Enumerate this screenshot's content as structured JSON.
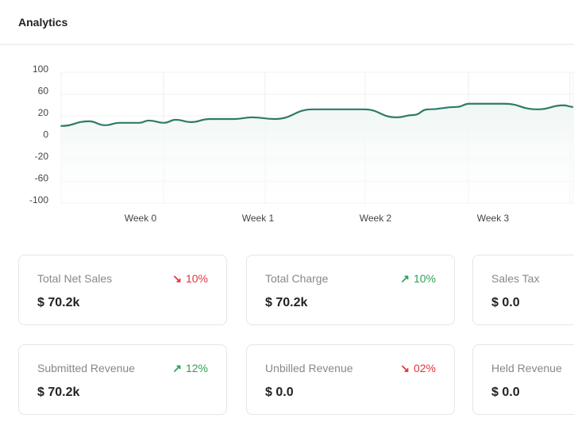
{
  "header": {
    "title": "Analytics"
  },
  "chart_data": {
    "type": "area",
    "xlabel": "",
    "ylabel": "",
    "y_tick_labels": [
      100,
      60,
      20,
      0,
      -20,
      -60,
      -100
    ],
    "x_tick_labels": [
      "Week 0",
      "Week 1",
      "Week 2",
      "Week 3"
    ],
    "x_ticks": [
      0,
      1,
      2,
      3
    ],
    "xlim": [
      -0.68,
      3.7
    ],
    "grid": true,
    "line_color": "#2f7a6a",
    "fill_color": "#eef6f3",
    "series": [
      {
        "x": [
          -0.68,
          -0.44,
          -0.3,
          -0.18,
          -0.01,
          0.07,
          0.2,
          0.3,
          0.43,
          0.59,
          0.8,
          0.95,
          1.14,
          1.47,
          1.9,
          2.18,
          2.32,
          2.45,
          2.69,
          2.8,
          3.09,
          3.38,
          3.6,
          3.7
        ],
        "y": [
          10.7,
          15.0,
          11.4,
          13.6,
          13.6,
          15.7,
          13.6,
          16.4,
          14.3,
          17.1,
          17.1,
          18.6,
          17.1,
          31.9,
          31.9,
          18.6,
          21.5,
          31.9,
          36.3,
          42.2,
          42.2,
          31.9,
          39.3,
          36.3
        ]
      }
    ]
  },
  "cards": [
    {
      "label": "Total Net Sales",
      "value": "$ 70.2k",
      "change": "10%",
      "direction": "down"
    },
    {
      "label": "Total Charge",
      "value": "$ 70.2k",
      "change": "10%",
      "direction": "up"
    },
    {
      "label": "Sales Tax",
      "value": "$ 0.0"
    },
    {
      "label": "Submitted Revenue",
      "value": "$ 70.2k",
      "change": "12%",
      "direction": "up"
    },
    {
      "label": "Unbilled Revenue",
      "value": "$ 0.0",
      "change": "02%",
      "direction": "down"
    },
    {
      "label": "Held Revenue",
      "value": "$ 0.0"
    }
  ],
  "colors": {
    "up": "#2e9e55",
    "down": "#e0353b"
  },
  "icons": {
    "up": "arrow-up-right-icon",
    "down": "arrow-down-right-icon"
  }
}
